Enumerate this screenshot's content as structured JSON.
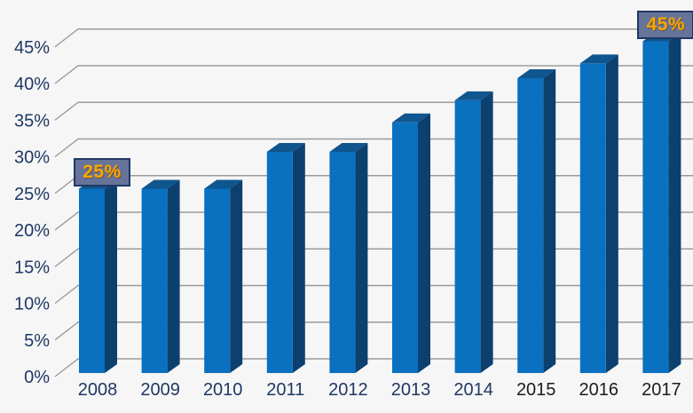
{
  "chart_data": {
    "type": "bar",
    "title": "",
    "xlabel": "",
    "ylabel": "",
    "categories": [
      "2008",
      "2009",
      "2010",
      "2011",
      "2012",
      "2013",
      "2014",
      "2015",
      "2016",
      "2017"
    ],
    "values": [
      25,
      25,
      25,
      30,
      30,
      34,
      37,
      40,
      42,
      45
    ],
    "ylim": [
      0,
      45
    ],
    "ytick_step": 5,
    "ytick_labels": [
      "0%",
      "5%",
      "10%",
      "15%",
      "20%",
      "25%",
      "30%",
      "35%",
      "40%",
      "45%"
    ],
    "grid": true,
    "legend": false,
    "style": "3d-oblique-columns",
    "annotations": [
      {
        "category": "2008",
        "text": "25%"
      },
      {
        "category": "2017",
        "text": "45%"
      }
    ],
    "x_tick_colors": [
      "#1f3864",
      "#1f3864",
      "#1f3864",
      "#1f3864",
      "#1f3864",
      "#1f3864",
      "#1f3864",
      "#1c1c1c",
      "#1c1c1c",
      "#1c1c1c"
    ],
    "colors": {
      "bar_front": "#0a70c0",
      "bar_top": "#0f558e",
      "bar_side": "#0c406e",
      "gridline": "#9b9b9b",
      "axis_text": "#1f3864",
      "background": "#f6f6f6",
      "annotation_bg": "#66749a",
      "annotation_border": "#1f3864",
      "annotation_text": "#f9a602"
    }
  }
}
